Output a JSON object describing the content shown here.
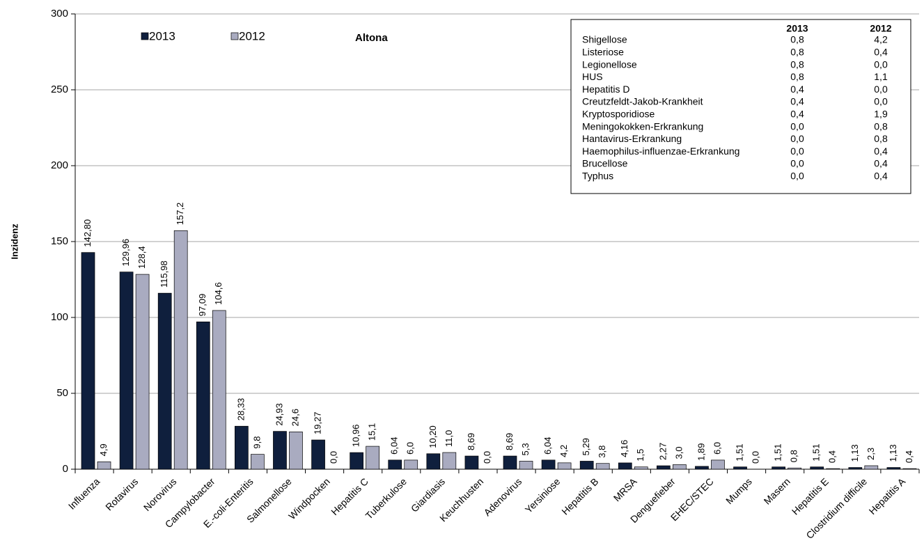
{
  "chart_data": {
    "type": "bar",
    "annotation": "Altona",
    "ylabel": "Inzidenz",
    "categories": [
      "Influenza",
      "Rotavirus",
      "Norovirus",
      "Campylobacter",
      "E.-coli-Enteritis",
      "Salmonellose",
      "Windpocken",
      "Hepatitis C",
      "Tuberkulose",
      "Giardiasis",
      "Keuchhusten",
      "Adenovirus",
      "Yersiniose",
      "Hepatitis B",
      "MRSA",
      "Denguefieber",
      "EHEC/STEC",
      "Mumps",
      "Masern",
      "Hepatitis E",
      "Clostridium difficile",
      "Hepatitis A"
    ],
    "series": [
      {
        "name": "2013",
        "color": "#0f1f3d",
        "values": [
          142.8,
          129.96,
          115.98,
          97.09,
          28.33,
          24.93,
          19.27,
          10.96,
          6.04,
          10.2,
          8.69,
          8.69,
          6.04,
          5.29,
          4.16,
          2.27,
          1.89,
          1.51,
          1.51,
          1.51,
          1.13,
          1.13
        ],
        "value_labels": [
          "142,80",
          "129,96",
          "115,98",
          "97,09",
          "28,33",
          "24,93",
          "19,27",
          "10,96",
          "6,04",
          "10,20",
          "8,69",
          "8,69",
          "6,04",
          "5,29",
          "4,16",
          "2,27",
          "1,89",
          "1,51",
          "1,51",
          "1,51",
          "1,13",
          "1,13"
        ]
      },
      {
        "name": "2012",
        "color": "#a9abc0",
        "values": [
          4.9,
          128.4,
          157.2,
          104.6,
          9.8,
          24.6,
          0.0,
          15.1,
          6.0,
          11.0,
          0.0,
          5.3,
          4.2,
          3.8,
          1.5,
          3.0,
          6.0,
          0.0,
          0.8,
          0.4,
          2.3,
          0.4
        ],
        "value_labels": [
          "4,9",
          "128,4",
          "157,2",
          "104,6",
          "9,8",
          "24,6",
          "0,0",
          "15,1",
          "6,0",
          "11,0",
          "0,0",
          "5,3",
          "4,2",
          "3,8",
          "1,5",
          "3,0",
          "6,0",
          "0,0",
          "0,8",
          "0,4",
          "2,3",
          "0,4"
        ]
      }
    ],
    "ylim": [
      0,
      300
    ],
    "yticks": [
      0,
      50,
      100,
      150,
      200,
      250,
      300
    ],
    "grid": true,
    "table": {
      "columns": [
        "2013",
        "2012"
      ],
      "rows": [
        [
          "Shigellose",
          "0,8",
          "4,2"
        ],
        [
          "Listeriose",
          "0,8",
          "0,4"
        ],
        [
          "Legionellose",
          "0,8",
          "0,0"
        ],
        [
          "HUS",
          "0,8",
          "1,1"
        ],
        [
          "Hepatitis D",
          "0,4",
          "0,0"
        ],
        [
          "Creutzfeldt-Jakob-Krankheit",
          "0,4",
          "0,0"
        ],
        [
          "Kryptosporidiose",
          "0,4",
          "1,9"
        ],
        [
          "Meningokokken-Erkrankung",
          "0,0",
          "0,8"
        ],
        [
          "Hantavirus-Erkrankung",
          "0,0",
          "0,8"
        ],
        [
          "Haemophilus-influenzae-Erkrankung",
          "0,0",
          "0,4"
        ],
        [
          "Brucellose",
          "0,0",
          "0,4"
        ],
        [
          "Typhus",
          "0,0",
          "0,4"
        ]
      ]
    }
  }
}
